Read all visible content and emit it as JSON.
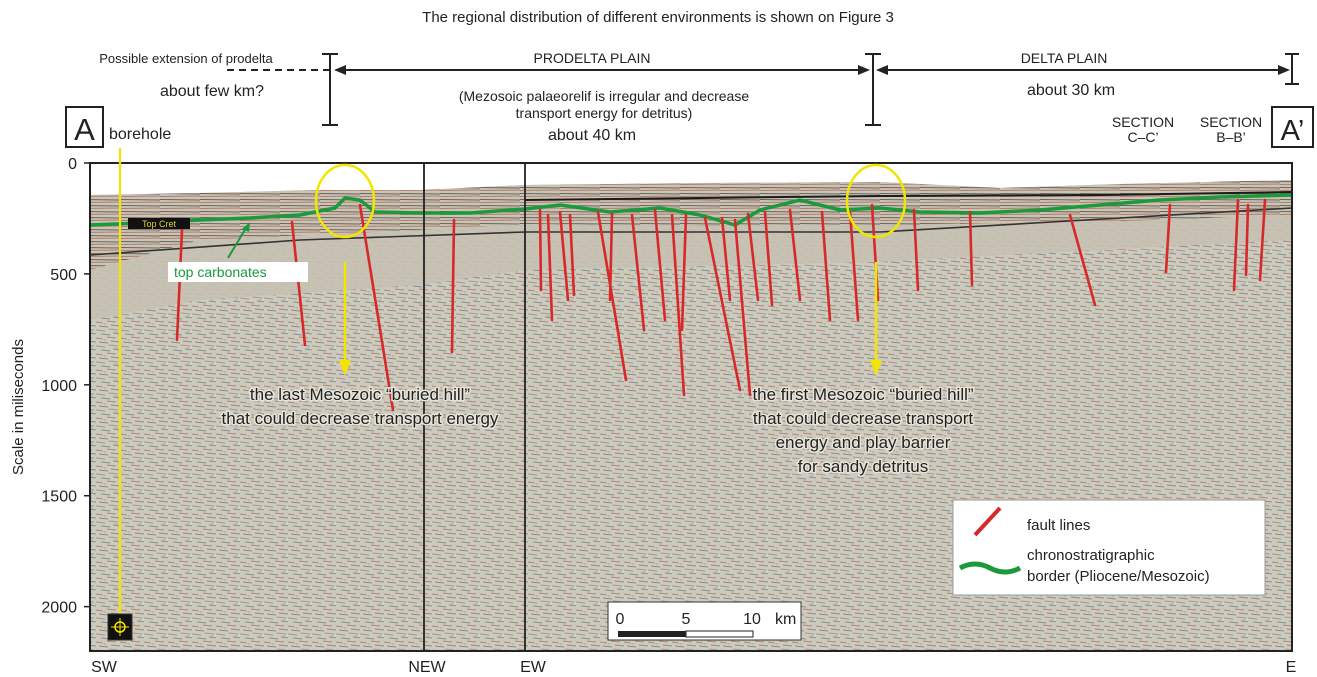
{
  "caption": "The regional distribution of different environments is shown on Figure 3",
  "zones": {
    "prodelta_extension": {
      "label": "Possible extension of prodelta",
      "extent": "about few km?"
    },
    "prodelta_plain": {
      "label": "PRODELTA PLAIN",
      "note_line1": "(Mezosoic palaeorelif is irregular and decrease",
      "note_line2": "transport energy for detritus)",
      "extent": "about 40 km"
    },
    "delta_plain": {
      "label": "DELTA PLAIN",
      "extent": "about 30 km"
    }
  },
  "markers": {
    "start": "A",
    "end": "A’",
    "borehole": "borehole",
    "section_cc": {
      "line1": "SECTION",
      "line2": "C–C’"
    },
    "section_bb": {
      "line1": "SECTION",
      "line2": "B–B’"
    }
  },
  "axis": {
    "ylabel": "Scale in miliseconds",
    "ticks": [
      "0",
      "500",
      "1000",
      "1500",
      "2000"
    ],
    "tick_values": [
      0,
      500,
      1000,
      1500,
      2000
    ],
    "ymax": 2200
  },
  "bottom_labels": {
    "sw": "SW",
    "new": "NEW",
    "ew": "EW",
    "e": "E"
  },
  "annotations": {
    "top_carbonates": "top carbonates",
    "top_cret_tag": "Top Cret",
    "last_hill_line1": "the last Mesozoic “buried hill”",
    "last_hill_line2": "that could decrease transport energy",
    "first_hill_line1": "the first Mesozoic “buried hill”",
    "first_hill_line2": "that could decrease transport",
    "first_hill_line3": "energy and play barrier",
    "first_hill_line4": "for sandy detritus"
  },
  "legend": {
    "fault": "fault lines",
    "border_line1": "chronostratigraphic",
    "border_line2": "border (Pliocene/Mesozoic)"
  },
  "scale_bar": {
    "ticks": [
      "0",
      "5",
      "10"
    ],
    "unit": "km"
  },
  "colors": {
    "fault": "#d8292a",
    "border": "#1a9a3a",
    "highlight": "#f2e600",
    "seismic_bg": "#cfcdbf"
  }
}
